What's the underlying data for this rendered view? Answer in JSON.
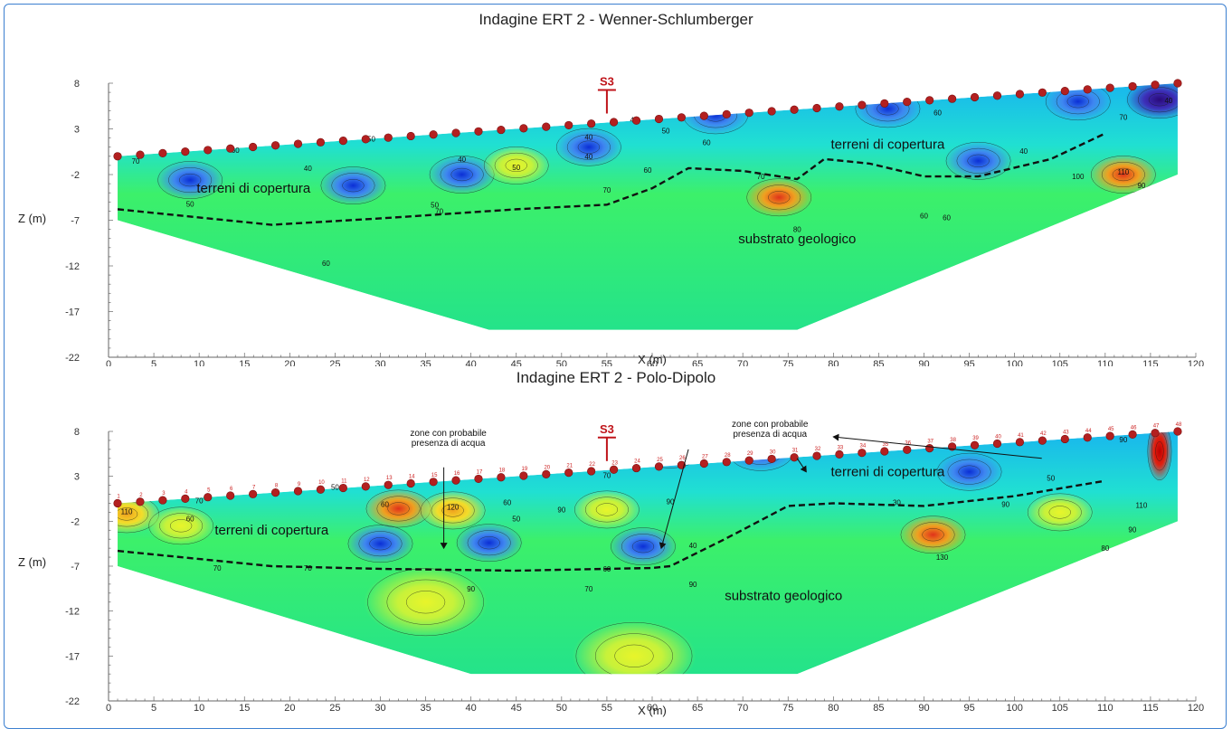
{
  "chart_data": [
    {
      "type": "heatmap",
      "title": "Indagine ERT 2  - Wenner-Schlumberger",
      "xlabel": "X (m)",
      "ylabel": "Z (m)",
      "xlim": [
        0,
        120
      ],
      "ylim": [
        -22,
        8
      ],
      "x_ticks": [
        0,
        5,
        10,
        15,
        20,
        25,
        30,
        35,
        40,
        45,
        50,
        55,
        60,
        65,
        70,
        75,
        80,
        85,
        90,
        95,
        100,
        105,
        110,
        115,
        120
      ],
      "y_ticks": [
        8,
        3,
        -2,
        -7,
        -12,
        -17,
        -22
      ],
      "borehole": {
        "label": "S3",
        "x": 55
      },
      "electrode_count": 48,
      "section_outline": [
        [
          1,
          0
        ],
        [
          118,
          8
        ],
        [
          118,
          -2
        ],
        [
          76,
          -19
        ],
        [
          42,
          -19
        ],
        [
          1,
          -7
        ]
      ],
      "interface_line": [
        [
          1,
          -5.8
        ],
        [
          8,
          -6.5
        ],
        [
          18,
          -7.5
        ],
        [
          30,
          -6.8
        ],
        [
          45,
          -5.8
        ],
        [
          55,
          -5.3
        ],
        [
          60,
          -3.5
        ],
        [
          64,
          -1.3
        ],
        [
          70,
          -1.6
        ],
        [
          76,
          -2.5
        ],
        [
          79,
          -0.3
        ],
        [
          84,
          -0.8
        ],
        [
          90,
          -2.2
        ],
        [
          96,
          -2.2
        ],
        [
          104,
          -0.3
        ],
        [
          110,
          2.5
        ]
      ],
      "annotations": [
        {
          "text": "terreni di copertura",
          "x": 16,
          "y": -4
        },
        {
          "text": "terreni di copertura",
          "x": 86,
          "y": 0.8
        },
        {
          "text": "substrato geologico",
          "x": 76,
          "y": -9.5
        }
      ],
      "contour_labels": [
        {
          "text": "70",
          "x": 3,
          "y": -0.8
        },
        {
          "text": "60",
          "x": 14,
          "y": 0.4
        },
        {
          "text": "40",
          "x": 22,
          "y": -1.6
        },
        {
          "text": "50",
          "x": 9,
          "y": -5.5
        },
        {
          "text": "50",
          "x": 29,
          "y": 1.6
        },
        {
          "text": "40",
          "x": 39,
          "y": -0.6
        },
        {
          "text": "50",
          "x": 45,
          "y": -1.5
        },
        {
          "text": "40",
          "x": 53,
          "y": 1.8
        },
        {
          "text": "40",
          "x": 53,
          "y": -0.3
        },
        {
          "text": "40",
          "x": 58,
          "y": 3.7
        },
        {
          "text": "50",
          "x": 61.5,
          "y": 2.5
        },
        {
          "text": "60",
          "x": 59.5,
          "y": -1.8
        },
        {
          "text": "70",
          "x": 55,
          "y": -4
        },
        {
          "text": "60",
          "x": 66,
          "y": 1.2
        },
        {
          "text": "70",
          "x": 72,
          "y": -2.5
        },
        {
          "text": "50",
          "x": 36,
          "y": -5.6
        },
        {
          "text": "70",
          "x": 36.5,
          "y": -6.3
        },
        {
          "text": "80",
          "x": 76,
          "y": -8.3
        },
        {
          "text": "60",
          "x": 24,
          "y": -12
        },
        {
          "text": "60",
          "x": 91.5,
          "y": 4.5
        },
        {
          "text": "70",
          "x": 112,
          "y": 4
        },
        {
          "text": "40",
          "x": 101,
          "y": 0.3
        },
        {
          "text": "60",
          "x": 90,
          "y": -6.8
        },
        {
          "text": "60",
          "x": 92.5,
          "y": -7
        },
        {
          "text": "100",
          "x": 107,
          "y": -2.5
        },
        {
          "text": "110",
          "x": 112,
          "y": -2
        },
        {
          "text": "90",
          "x": 114,
          "y": -3.5
        },
        {
          "text": "40",
          "x": 117,
          "y": 5.8
        }
      ],
      "anomalies": [
        {
          "x": 9,
          "y": -2.6,
          "level": "low"
        },
        {
          "x": 27,
          "y": -3.2,
          "level": "low"
        },
        {
          "x": 39,
          "y": -2,
          "level": "low"
        },
        {
          "x": 53,
          "y": 1,
          "level": "low"
        },
        {
          "x": 67,
          "y": 4.5,
          "level": "low"
        },
        {
          "x": 86,
          "y": 5.2,
          "level": "low"
        },
        {
          "x": 107,
          "y": 6,
          "level": "low"
        },
        {
          "x": 116,
          "y": 6.2,
          "level": "very-low"
        },
        {
          "x": 96,
          "y": -0.5,
          "level": "low"
        },
        {
          "x": 74,
          "y": -4.5,
          "level": "high"
        },
        {
          "x": 112,
          "y": -2,
          "level": "high"
        },
        {
          "x": 45,
          "y": -1,
          "level": "medium"
        }
      ]
    },
    {
      "type": "heatmap",
      "title": "Indagine ERT 2  - Polo-Dipolo",
      "xlabel": "X (m)",
      "ylabel": "Z (m)",
      "xlim": [
        0,
        120
      ],
      "ylim": [
        -22,
        8
      ],
      "x_ticks": [
        0,
        5,
        10,
        15,
        20,
        25,
        30,
        35,
        40,
        45,
        50,
        55,
        60,
        65,
        70,
        75,
        80,
        85,
        90,
        95,
        100,
        105,
        110,
        115,
        120
      ],
      "y_ticks": [
        8,
        3,
        -2,
        -7,
        -12,
        -17,
        -22
      ],
      "borehole": {
        "label": "S3",
        "x": 55
      },
      "electrode_count": 48,
      "section_outline": [
        [
          1,
          0
        ],
        [
          118,
          8
        ],
        [
          118,
          -2
        ],
        [
          76,
          -19
        ],
        [
          40,
          -19
        ],
        [
          1,
          -7
        ]
      ],
      "interface_line": [
        [
          1,
          -5.3
        ],
        [
          8,
          -6
        ],
        [
          18,
          -7
        ],
        [
          30,
          -7.3
        ],
        [
          45,
          -7.5
        ],
        [
          60,
          -7.2
        ],
        [
          62,
          -7
        ],
        [
          68,
          -4
        ],
        [
          75,
          -0.3
        ],
        [
          80,
          0
        ],
        [
          90,
          -0.3
        ],
        [
          100,
          0.8
        ],
        [
          110,
          2.5
        ]
      ],
      "annotations": [
        {
          "text": "terreni di copertura",
          "x": 18,
          "y": -3.5
        },
        {
          "text": "terreni di copertura",
          "x": 86,
          "y": 3
        },
        {
          "text": "substrato geologico",
          "x": 74.5,
          "y": -10.8
        }
      ],
      "water_notes": [
        {
          "text": [
            "zone con probabile",
            "presenza di acqua"
          ],
          "x": 37.5,
          "y": 7.5,
          "arrows": [
            {
              "from": [
                37,
                4
              ],
              "to": [
                37,
                -5
              ]
            }
          ]
        },
        {
          "text": [
            "zone con probabile",
            "presenza di acqua"
          ],
          "x": 73,
          "y": 8.5,
          "arrows": [
            {
              "from": [
                64,
                6
              ],
              "to": [
                61,
                -5
              ]
            },
            {
              "from": [
                76,
                5
              ],
              "to": [
                77,
                3.5
              ]
            },
            {
              "from": [
                103,
                5
              ],
              "to": [
                80,
                7.4
              ]
            }
          ]
        }
      ],
      "contour_labels": [
        {
          "text": "110",
          "x": 2,
          "y": -1.2
        },
        {
          "text": "60",
          "x": 9,
          "y": -2
        },
        {
          "text": "70",
          "x": 10,
          "y": 0
        },
        {
          "text": "50",
          "x": 25,
          "y": 1.5
        },
        {
          "text": "60",
          "x": 30.5,
          "y": -0.4
        },
        {
          "text": "120",
          "x": 38,
          "y": -0.7
        },
        {
          "text": "60",
          "x": 44,
          "y": -0.2
        },
        {
          "text": "50",
          "x": 45,
          "y": -2
        },
        {
          "text": "90",
          "x": 50,
          "y": -1
        },
        {
          "text": "70",
          "x": 55,
          "y": 2.8
        },
        {
          "text": "90",
          "x": 62,
          "y": -0.1
        },
        {
          "text": "40",
          "x": 64.5,
          "y": -5
        },
        {
          "text": "70",
          "x": 12,
          "y": -7.5
        },
        {
          "text": "70",
          "x": 22,
          "y": -7.5
        },
        {
          "text": "60",
          "x": 55,
          "y": -7.6
        },
        {
          "text": "90",
          "x": 40,
          "y": -9.8
        },
        {
          "text": "70",
          "x": 53,
          "y": -9.8
        },
        {
          "text": "90",
          "x": 64.5,
          "y": -9.3
        },
        {
          "text": "30",
          "x": 87,
          "y": -0.2
        },
        {
          "text": "50",
          "x": 104,
          "y": 2.5
        },
        {
          "text": "90",
          "x": 99,
          "y": -0.4
        },
        {
          "text": "110",
          "x": 114,
          "y": -0.5
        },
        {
          "text": "90",
          "x": 112,
          "y": 6.8
        },
        {
          "text": "130",
          "x": 92,
          "y": -6.3
        },
        {
          "text": "90",
          "x": 113,
          "y": -3.2
        },
        {
          "text": "80",
          "x": 110,
          "y": -5.3
        }
      ],
      "anomalies": [
        {
          "x": 32,
          "y": -0.6,
          "level": "high"
        },
        {
          "x": 38,
          "y": -0.8,
          "level": "medium-high"
        },
        {
          "x": 55,
          "y": -0.7,
          "level": "medium"
        },
        {
          "x": 91,
          "y": -3.5,
          "level": "high"
        },
        {
          "x": 105,
          "y": -1,
          "level": "medium"
        },
        {
          "x": 2,
          "y": -1.2,
          "level": "medium-high"
        },
        {
          "x": 8,
          "y": -2.5,
          "level": "medium"
        },
        {
          "x": 35,
          "y": -11,
          "level": "medium"
        },
        {
          "x": 58,
          "y": -17,
          "level": "medium"
        },
        {
          "x": 62,
          "y": 6,
          "level": "low"
        },
        {
          "x": 72,
          "y": 5.7,
          "level": "low"
        },
        {
          "x": 95,
          "y": 3.5,
          "level": "low"
        },
        {
          "x": 30,
          "y": -4.5,
          "level": "low"
        },
        {
          "x": 42,
          "y": -4.4,
          "level": "low"
        },
        {
          "x": 59,
          "y": -4.8,
          "level": "low"
        },
        {
          "x": 116,
          "y": 5.8,
          "level": "very-high"
        }
      ]
    }
  ]
}
